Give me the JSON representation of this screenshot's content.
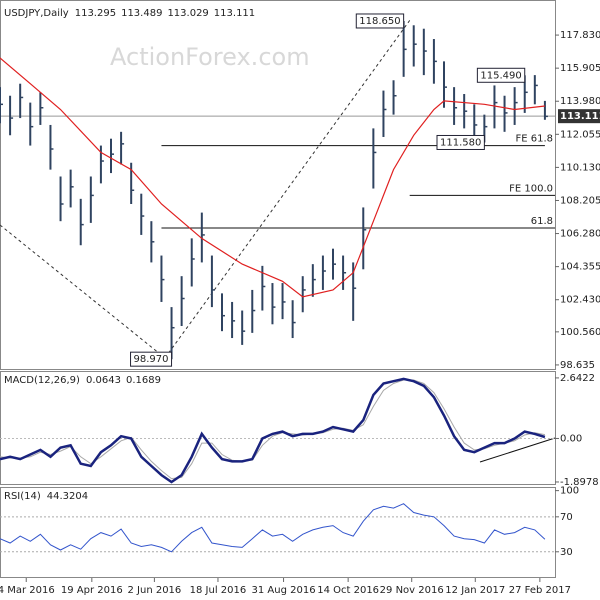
{
  "chart_data": [
    {
      "type": "ohlc",
      "title": "USDJPY,Daily",
      "readout": [
        113.295,
        113.489,
        113.029,
        113.111
      ],
      "watermark": "ActionForex.com",
      "last_value": 113.111,
      "color": "#2f4360",
      "xlim": [
        0,
        55
      ],
      "ylim": [
        98.34,
        119.58
      ],
      "yticks": [
        {
          "value": 117.83,
          "label": "117.830"
        },
        115.905,
        {
          "value": 113.98,
          "label": "113.980"
        },
        112.055,
        {
          "value": 110.13,
          "label": "110.130"
        },
        108.205,
        {
          "value": 106.28,
          "label": "106.280"
        },
        104.355,
        {
          "value": 102.43,
          "label": "102.430"
        },
        {
          "value": 100.56,
          "label": "100.560"
        },
        98.635
      ],
      "x": [
        0,
        1,
        2,
        3,
        4,
        5,
        6,
        7,
        8,
        9,
        10,
        11,
        12,
        13,
        14,
        15,
        16,
        17,
        18,
        19,
        20,
        21,
        22,
        23,
        24,
        25,
        26,
        27,
        28,
        29,
        30,
        31,
        32,
        33,
        34,
        35,
        36,
        37,
        38,
        39,
        40,
        41,
        42,
        43,
        44,
        45,
        46,
        47,
        48,
        49,
        50,
        51,
        52,
        53,
        54
      ],
      "high": [
        114.8,
        114.3,
        115.0,
        113.9,
        114.5,
        112.6,
        109.6,
        110.0,
        108.3,
        109.6,
        111.4,
        111.8,
        112.2,
        110.4,
        108.6,
        107.0,
        105.0,
        102.0,
        103.8,
        106.0,
        107.5,
        105.0,
        102.8,
        102.3,
        101.8,
        103.0,
        104.4,
        103.4,
        103.4,
        102.4,
        103.8,
        104.5,
        105.0,
        105.4,
        105.0,
        104.6,
        107.8,
        112.4,
        114.6,
        115.2,
        118.65,
        118.4,
        118.2,
        117.6,
        116.3,
        114.8,
        114.4,
        113.8,
        113.2,
        114.9,
        114.3,
        114.8,
        115.49,
        115.5,
        114.0
      ],
      "low": [
        112.7,
        112.0,
        113.0,
        111.4,
        112.6,
        110.0,
        107.0,
        107.8,
        105.6,
        106.9,
        109.2,
        109.8,
        110.3,
        108.0,
        106.2,
        104.6,
        102.3,
        98.97,
        100.9,
        103.2,
        104.6,
        102.0,
        100.6,
        100.2,
        99.8,
        100.5,
        101.8,
        101.0,
        101.3,
        100.2,
        101.7,
        102.6,
        103.0,
        103.6,
        103.0,
        101.2,
        104.2,
        108.9,
        111.9,
        113.2,
        115.4,
        116.0,
        115.5,
        115.0,
        113.6,
        112.6,
        112.4,
        111.7,
        111.58,
        112.4,
        112.2,
        112.6,
        113.3,
        113.8,
        112.9
      ],
      "close": [
        113.8,
        113.0,
        114.2,
        112.5,
        113.6,
        111.2,
        108.0,
        109.0,
        106.8,
        108.5,
        110.5,
        110.9,
        111.5,
        108.8,
        107.3,
        105.8,
        103.6,
        100.8,
        102.5,
        104.8,
        106.2,
        103.0,
        101.5,
        101.2,
        100.6,
        101.8,
        103.2,
        102.0,
        102.3,
        101.1,
        103.0,
        103.6,
        104.1,
        104.5,
        104.0,
        103.1,
        106.5,
        111.0,
        113.5,
        114.3,
        117.0,
        117.3,
        116.9,
        116.3,
        114.8,
        113.6,
        113.4,
        112.6,
        112.5,
        113.9,
        113.3,
        113.9,
        114.5,
        114.9,
        113.1
      ],
      "sma": {
        "color": "#e02020",
        "x": [
          0,
          3,
          6,
          10,
          13,
          16,
          20,
          24,
          28,
          30,
          33,
          35,
          37,
          39,
          41,
          43,
          44,
          48,
          51,
          54
        ],
        "values": [
          116.5,
          115.0,
          113.5,
          111.0,
          110.0,
          108.0,
          106.0,
          104.5,
          103.5,
          102.6,
          103.0,
          104.0,
          107.0,
          110.0,
          112.0,
          113.5,
          114.0,
          113.8,
          113.5,
          113.7
        ]
      },
      "price_labels": [
        {
          "value": 118.65,
          "label": "118.650",
          "x": 40
        },
        {
          "value": 115.49,
          "label": "115.490",
          "x": 52
        },
        {
          "value": 111.58,
          "label": "111.580",
          "x": 48
        },
        {
          "value": 98.97,
          "label": "98.970",
          "x": 17
        }
      ],
      "levels": [
        {
          "label": "FE 61.8",
          "value": 111.4,
          "x0": 16,
          "x1": 54
        },
        {
          "label": "FE 100.0",
          "value": 108.5,
          "x0": 40.6,
          "x1": 55
        },
        {
          "label": "61.8",
          "value": 106.6,
          "x0": 16,
          "x1": 55
        }
      ]
    },
    {
      "type": "macd",
      "title": "MACD(12,26,9)",
      "readout": [
        0.0643,
        0.1689
      ],
      "xlim": [
        0,
        55
      ],
      "ylim": [
        -2.03,
        2.9
      ],
      "yticks": [
        2.6422,
        {
          "value": 0,
          "label": "0.00"
        },
        -1.8978
      ],
      "x": [
        0,
        1,
        2,
        3,
        4,
        5,
        6,
        7,
        8,
        9,
        10,
        11,
        12,
        13,
        14,
        15,
        16,
        17,
        18,
        19,
        20,
        21,
        22,
        23,
        24,
        25,
        26,
        27,
        28,
        29,
        30,
        31,
        32,
        33,
        34,
        35,
        36,
        37,
        38,
        39,
        40,
        41,
        42,
        43,
        44,
        45,
        46,
        47,
        48,
        49,
        50,
        51,
        52,
        53,
        54
      ],
      "series": [
        {
          "name": "MACD",
          "color": "#1a237e",
          "values": [
            -0.9,
            -0.8,
            -0.9,
            -0.7,
            -0.5,
            -0.8,
            -0.4,
            -0.3,
            -1.1,
            -1.2,
            -0.6,
            -0.3,
            0.1,
            0.0,
            -0.8,
            -1.2,
            -1.6,
            -1.9,
            -1.6,
            -0.8,
            0.2,
            -0.4,
            -0.9,
            -1.0,
            -1.0,
            -0.9,
            0.0,
            0.2,
            0.3,
            0.1,
            0.2,
            0.2,
            0.3,
            0.5,
            0.4,
            0.3,
            0.8,
            1.9,
            2.4,
            2.5,
            2.6,
            2.5,
            2.3,
            1.8,
            1.0,
            0.1,
            -0.5,
            -0.6,
            -0.4,
            -0.2,
            -0.2,
            0.0,
            0.3,
            0.2,
            0.0643
          ]
        },
        {
          "name": "Signal",
          "color": "#a8a8a8",
          "values": [
            -0.8,
            -0.85,
            -0.85,
            -0.8,
            -0.6,
            -0.7,
            -0.55,
            -0.35,
            -0.8,
            -1.1,
            -0.8,
            -0.45,
            -0.1,
            0.05,
            -0.5,
            -1.0,
            -1.4,
            -1.75,
            -1.7,
            -1.1,
            -0.2,
            -0.2,
            -0.7,
            -0.95,
            -1.0,
            -0.95,
            -0.3,
            0.1,
            0.25,
            0.2,
            0.15,
            0.2,
            0.25,
            0.4,
            0.45,
            0.35,
            0.6,
            1.4,
            2.1,
            2.4,
            2.55,
            2.55,
            2.4,
            2.0,
            1.3,
            0.5,
            -0.2,
            -0.5,
            -0.45,
            -0.3,
            -0.2,
            -0.1,
            0.15,
            0.25,
            0.1689
          ]
        }
      ]
    },
    {
      "type": "rsi",
      "title": "RSI(14)",
      "readout": [
        44.3204
      ],
      "xlim": [
        0,
        55
      ],
      "ylim": [
        0,
        103
      ],
      "yticks": [
        100,
        70,
        30
      ],
      "guides": [
        70,
        30
      ],
      "color": "#3355cc",
      "x": [
        0,
        1,
        2,
        3,
        4,
        5,
        6,
        7,
        8,
        9,
        10,
        11,
        12,
        13,
        14,
        15,
        16,
        17,
        18,
        19,
        20,
        21,
        22,
        23,
        24,
        25,
        26,
        27,
        28,
        29,
        30,
        31,
        32,
        33,
        34,
        35,
        36,
        37,
        38,
        39,
        40,
        41,
        42,
        43,
        44,
        45,
        46,
        47,
        48,
        49,
        50,
        51,
        52,
        53,
        54
      ],
      "values": [
        45,
        40,
        48,
        42,
        50,
        38,
        32,
        38,
        33,
        45,
        52,
        48,
        56,
        40,
        36,
        38,
        35,
        30,
        42,
        52,
        58,
        40,
        38,
        36,
        35,
        45,
        55,
        48,
        50,
        42,
        50,
        55,
        58,
        60,
        52,
        48,
        65,
        78,
        82,
        80,
        85,
        75,
        72,
        70,
        60,
        48,
        45,
        44,
        40,
        55,
        50,
        52,
        58,
        55,
        44.3204
      ],
      "xticks": [
        {
          "value": 2.6,
          "label": "4 Mar 2016"
        },
        {
          "value": 9.1,
          "label": "19 Apr 2016"
        },
        {
          "value": 15.3,
          "label": "2 Jun 2016"
        },
        {
          "value": 21.6,
          "label": "18 Jul 2016"
        },
        {
          "value": 28.1,
          "label": "31 Aug 2016"
        },
        {
          "value": 34.5,
          "label": "14 Oct 2016"
        },
        {
          "value": 40.8,
          "label": "29 Nov 2016"
        },
        {
          "value": 47.1,
          "label": "12 Jan 2017"
        },
        {
          "value": 53.5,
          "label": "27 Feb 2017"
        }
      ]
    }
  ]
}
